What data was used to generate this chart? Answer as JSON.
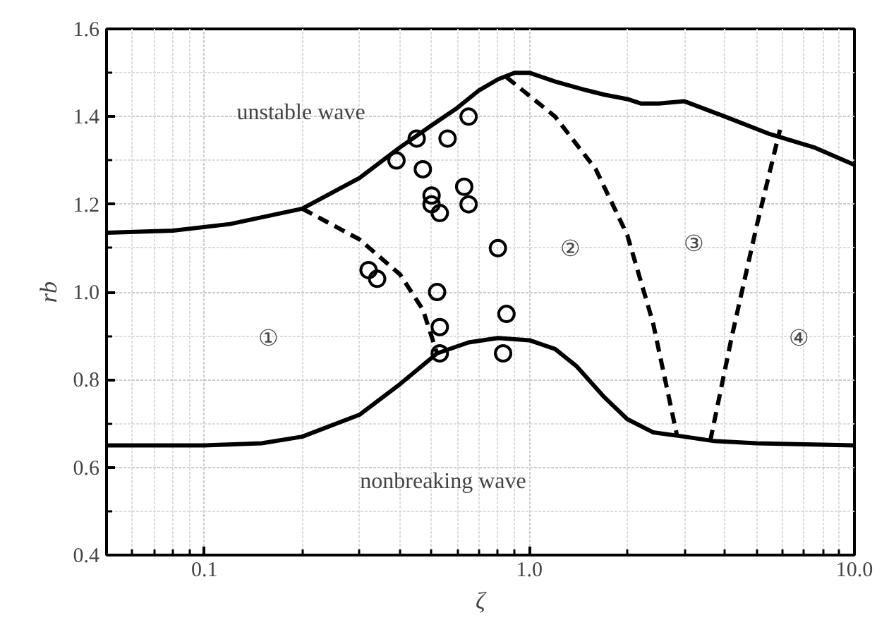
{
  "chart_data": {
    "type": "line",
    "xlabel": "ζ",
    "ylabel": "rb",
    "log": "x",
    "grid": true,
    "xlim": [
      0.05,
      10.0
    ],
    "ylim": [
      0.4,
      1.6
    ],
    "xticks": [
      0.1,
      {
        "value": 1,
        "label": "1.0"
      },
      {
        "value": 10,
        "label": "10.0"
      }
    ],
    "yticks": [
      0.4,
      0.6,
      0.8,
      {
        "value": 1,
        "label": "1.0"
      },
      1.2,
      1.4,
      1.6
    ],
    "series": [
      {
        "color": "#000000",
        "line_style": "solid",
        "x": [
          0.05,
          0.08,
          0.12,
          0.2,
          0.3,
          0.4,
          0.5,
          0.6,
          0.7,
          0.8,
          0.9,
          1.0,
          1.2,
          1.5,
          1.7,
          2.0,
          2.2,
          2.5,
          3.0,
          4.0,
          5.5,
          7.5,
          10.0
        ],
        "values": [
          1.135,
          1.14,
          1.155,
          1.19,
          1.26,
          1.33,
          1.38,
          1.42,
          1.46,
          1.485,
          1.5,
          1.5,
          1.48,
          1.46,
          1.45,
          1.44,
          1.43,
          1.43,
          1.435,
          1.4,
          1.36,
          1.33,
          1.29
        ]
      },
      {
        "color": "#000000",
        "line_style": "solid",
        "x": [
          0.05,
          0.1,
          0.15,
          0.2,
          0.3,
          0.4,
          0.52,
          0.65,
          0.8,
          1.0,
          1.2,
          1.4,
          1.7,
          2.0,
          2.4,
          3.0,
          3.7,
          5.0,
          10.0
        ],
        "values": [
          0.65,
          0.65,
          0.655,
          0.67,
          0.72,
          0.79,
          0.86,
          0.885,
          0.895,
          0.89,
          0.87,
          0.83,
          0.76,
          0.71,
          0.68,
          0.67,
          0.66,
          0.655,
          0.65
        ]
      },
      {
        "color": "#000000",
        "line_style": "dashed",
        "x": [
          0.2,
          0.3,
          0.4,
          0.47,
          0.52
        ],
        "values": [
          1.19,
          1.12,
          1.04,
          0.96,
          0.86
        ]
      },
      {
        "color": "#000000",
        "line_style": "dashed",
        "x": [
          0.85,
          1.2,
          1.6,
          2.0,
          2.4,
          2.85
        ],
        "values": [
          1.49,
          1.4,
          1.28,
          1.13,
          0.93,
          0.67
        ]
      },
      {
        "color": "#000000",
        "line_style": "dashed",
        "x": [
          3.6,
          4.2,
          5.0,
          5.9
        ],
        "values": [
          0.66,
          0.9,
          1.15,
          1.37
        ]
      },
      {
        "type": "scatter",
        "marker": "circle",
        "color": "#000000",
        "x": [
          0.39,
          0.45,
          0.47,
          0.5,
          0.5,
          0.53,
          0.56,
          0.63,
          0.65,
          0.65,
          0.32,
          0.34,
          0.52,
          0.53,
          0.53,
          0.8,
          0.85,
          0.83
        ],
        "values": [
          1.3,
          1.35,
          1.28,
          1.22,
          1.2,
          1.18,
          1.35,
          1.24,
          1.4,
          1.2,
          1.05,
          1.03,
          1.0,
          0.92,
          0.86,
          1.1,
          0.95,
          0.86
        ]
      }
    ],
    "annotations": [
      "unstable wave",
      "nonbreaking wave",
      "①",
      "②",
      "③",
      "④"
    ]
  }
}
